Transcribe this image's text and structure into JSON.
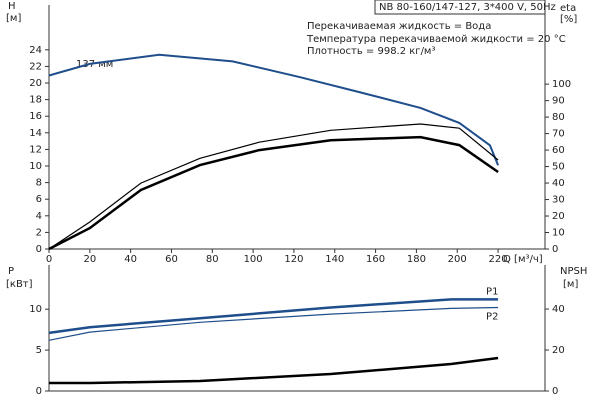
{
  "chart_data": [
    {
      "type": "line",
      "title": "NB 80-160/147-127, 3*400 V, 50Hz",
      "annotations": [
        "Перекачиваемая жидкость = Вода",
        "Температура перекачиваемой жидкости = 20 °C",
        "Плотность = 998.2 кг/м³"
      ],
      "curve_label": "137 мм",
      "xlabel": "Q [м³/ч]",
      "ylabel": [
        "H",
        "[м]"
      ],
      "y2label": [
        "eta",
        "[%]"
      ],
      "xlim": [
        0,
        243
      ],
      "xticks": [
        0,
        20,
        40,
        60,
        80,
        100,
        120,
        140,
        160,
        180,
        200,
        220
      ],
      "ylim": [
        0,
        29.4
      ],
      "yticks": [
        0,
        2,
        4,
        6,
        8,
        10,
        12,
        14,
        16,
        18,
        20,
        22,
        24
      ],
      "y2lim": [
        0,
        148
      ],
      "y2ticks": [
        0,
        10,
        20,
        30,
        40,
        50,
        60,
        70,
        80,
        90,
        100
      ],
      "series": [
        {
          "color": "#1f4e8c",
          "x": [
            0,
            20,
            54,
            90,
            123,
            152,
            182,
            201,
            216,
            220
          ],
          "values": [
            20.9,
            22.3,
            23.4,
            22.6,
            20.7,
            18.9,
            17,
            15.2,
            12.5,
            10.1
          ]
        },
        {
          "color": "#000000",
          "axis": "y2",
          "x": [
            0,
            20,
            45,
            74,
            103,
            138,
            182,
            201,
            220
          ],
          "values": [
            0,
            16.4,
            40,
            55,
            64.8,
            72,
            75.8,
            73.3,
            54
          ]
        },
        {
          "color": "#000000",
          "axis": "y2",
          "x": [
            0,
            20,
            45,
            74,
            103,
            138,
            182,
            201,
            220
          ],
          "values": [
            0,
            12.7,
            35.8,
            50.9,
            60,
            66,
            67.9,
            63,
            46.7
          ]
        }
      ]
    },
    {
      "type": "line",
      "ylabel": [
        "P",
        "[кВт]"
      ],
      "y2label": [
        "NPSH",
        "[м]"
      ],
      "xlim": [
        0,
        243
      ],
      "ylim": [
        0,
        15.4
      ],
      "yticks": [
        0,
        5,
        10
      ],
      "y2lim": [
        0,
        61.5
      ],
      "y2ticks": [
        0,
        20,
        40
      ],
      "series": [
        {
          "name": "P1",
          "color": "#1f4e8c",
          "x": [
            0,
            20,
            74,
            138,
            197,
            220
          ],
          "values": [
            7.1,
            7.8,
            8.9,
            10.2,
            11.2,
            11.2
          ]
        },
        {
          "name": "P2",
          "color": "#1f4e8c",
          "x": [
            0,
            20,
            74,
            138,
            197,
            220
          ],
          "values": [
            6.2,
            7.2,
            8.4,
            9.4,
            10.1,
            10.2
          ]
        },
        {
          "color": "#000000",
          "axis": "y2",
          "x": [
            0,
            20,
            74,
            138,
            197,
            220
          ],
          "values": [
            3.9,
            3.9,
            4.9,
            8.3,
            13.2,
            16.1
          ]
        }
      ]
    }
  ]
}
